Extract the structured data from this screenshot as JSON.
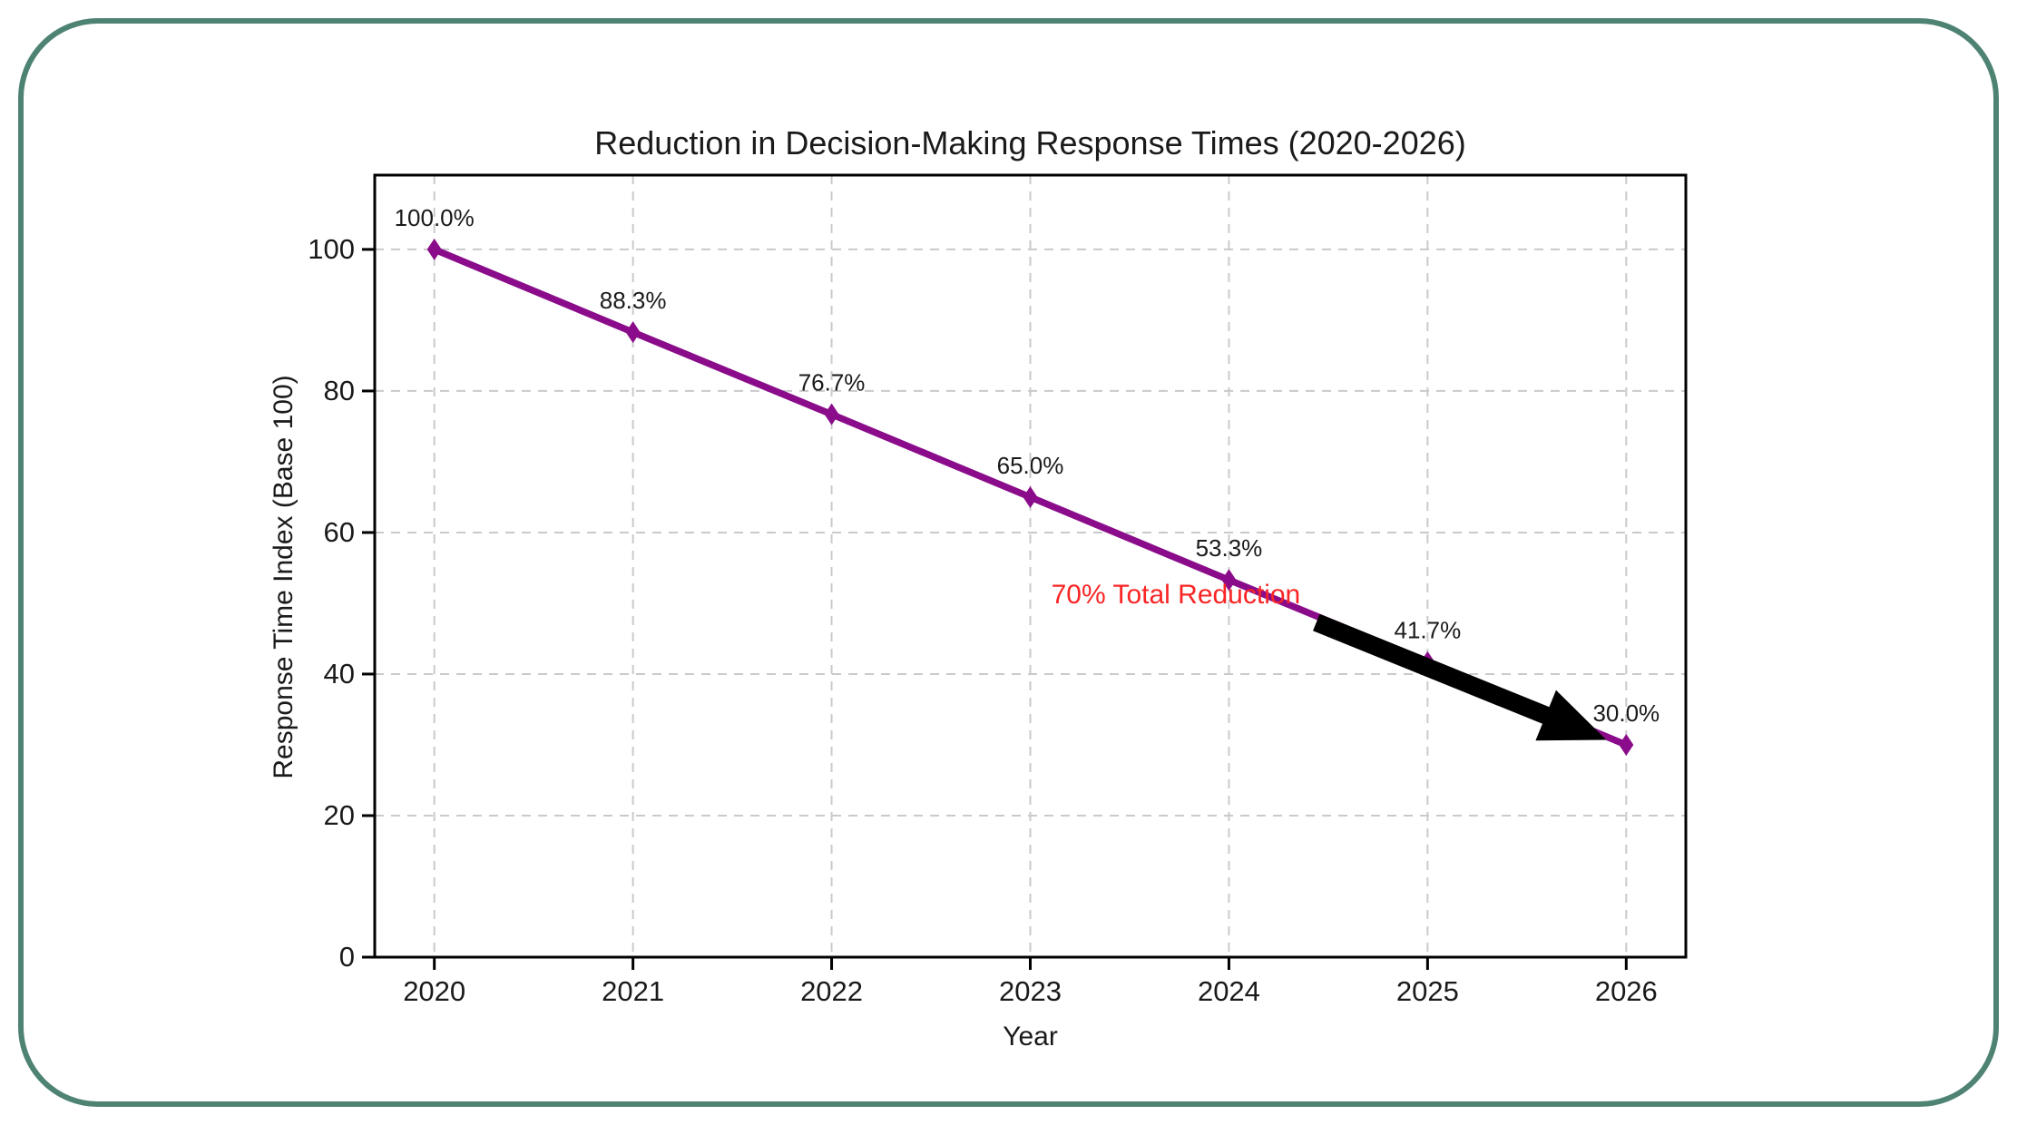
{
  "frame": {
    "border_color": "#4E8374"
  },
  "chart_data": {
    "type": "line",
    "title": "Reduction in Decision-Making Response Times (2020-2026)",
    "xlabel": "Year",
    "ylabel": "Response Time Index (Base 100)",
    "x": [
      2020,
      2021,
      2022,
      2023,
      2024,
      2025,
      2026
    ],
    "series": [
      {
        "name": "Response Time Index",
        "values": [
          100.0,
          88.3,
          76.7,
          65.0,
          53.3,
          41.7,
          30.0
        ],
        "point_labels": [
          "100.0%",
          "88.3%",
          "76.7%",
          "65.0%",
          "53.3%",
          "41.7%",
          "30.0%"
        ],
        "color": "#8A0C8A",
        "marker": "thin-diamond"
      }
    ],
    "xtick_labels": [
      "2020",
      "2021",
      "2022",
      "2023",
      "2024",
      "2025",
      "2026"
    ],
    "ytick_values": [
      0,
      20,
      40,
      60,
      80,
      100
    ],
    "xlim": [
      2019.7,
      2026.3
    ],
    "ylim": [
      0,
      110.5
    ],
    "grid": true,
    "grid_color": "#cacaca",
    "legend_position": "none",
    "text_color": "#1a1a1a",
    "annotation": {
      "text": "70% Total Reduction",
      "color": "#F92525",
      "text_anchor_xy": [
        2024.36,
        51.3
      ],
      "arrow_from_xy": [
        2024.44,
        47.3
      ],
      "arrow_to_xy": [
        2025.9,
        30.7
      ],
      "arrow_color": "#000000"
    }
  }
}
